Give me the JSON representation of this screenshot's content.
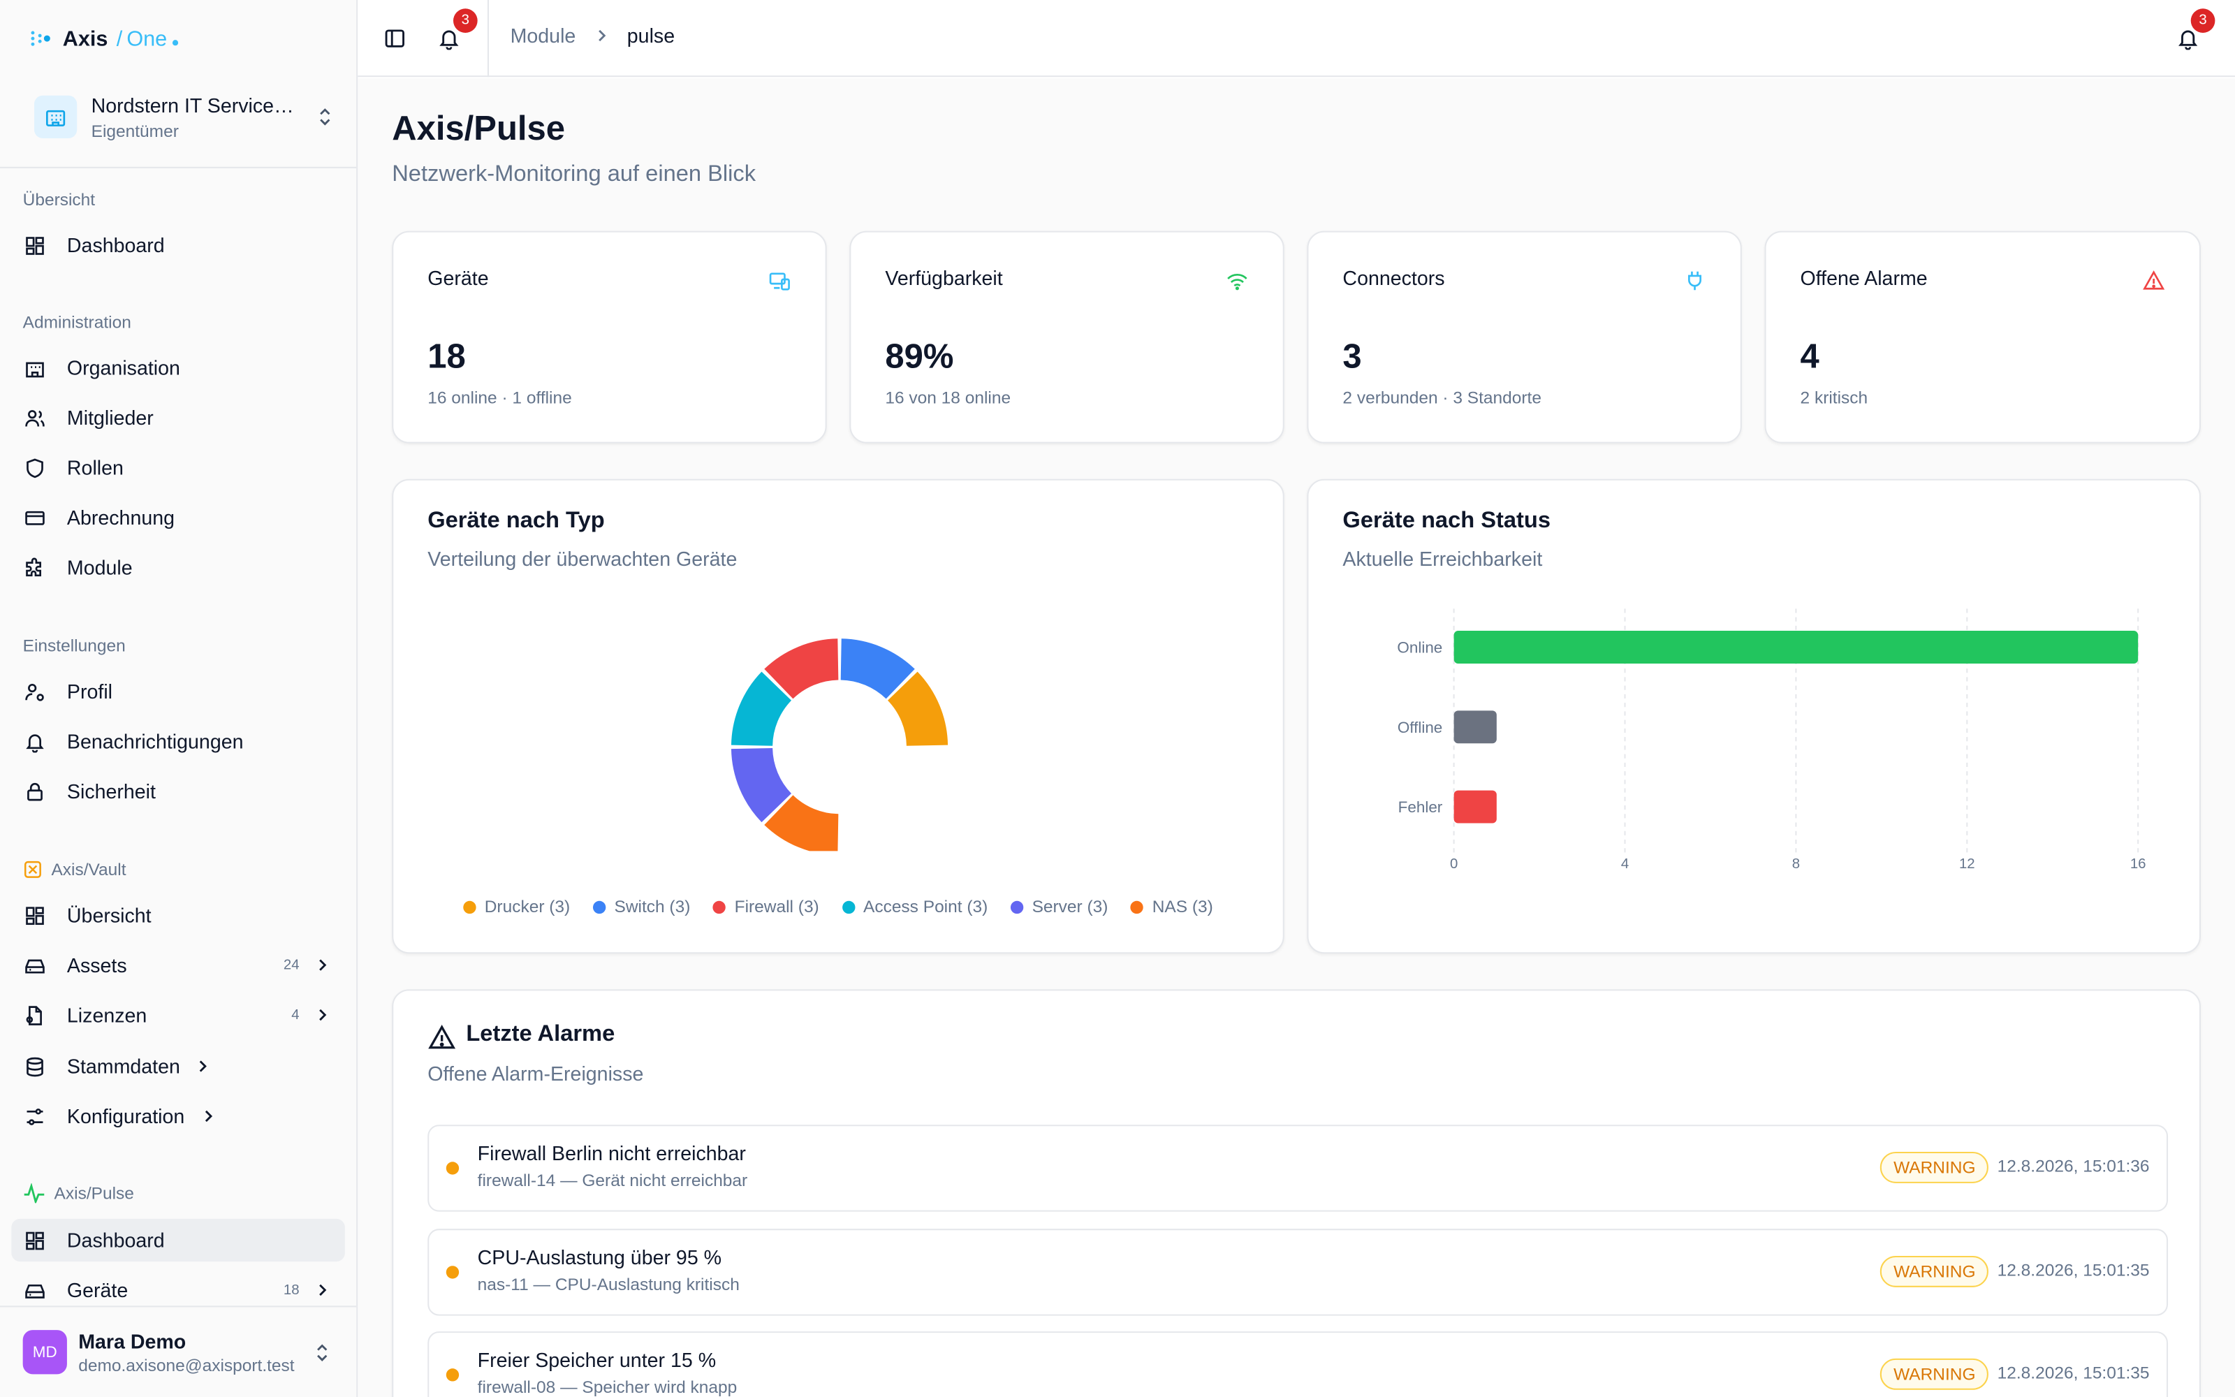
{
  "brand": {
    "name": "Axis",
    "separator": "/",
    "product": "One"
  },
  "org": {
    "name": "Nordstern IT Service…",
    "role": "Eigentümer"
  },
  "sidebar": {
    "sections": {
      "overview": "Übersicht",
      "administration": "Administration",
      "settings": "Einstellungen",
      "vault": "Axis/Vault",
      "pulse": "Axis/Pulse"
    },
    "items": {
      "dashboard": "Dashboard",
      "organisation": "Organisation",
      "members": "Mitglieder",
      "roles": "Rollen",
      "billing": "Abrechnung",
      "modules": "Module",
      "profile": "Profil",
      "notifications": "Benachrichtigungen",
      "security": "Sicherheit",
      "vault_overview": "Übersicht",
      "assets": "Assets",
      "assets_count": "24",
      "licenses": "Lizenzen",
      "licenses_count": "4",
      "masterdata": "Stammdaten",
      "configuration": "Konfiguration",
      "pulse_dashboard": "Dashboard",
      "devices": "Geräte",
      "devices_count": "18"
    }
  },
  "user": {
    "initials": "MD",
    "name": "Mara Demo",
    "email": "demo.axisone@axisport.test"
  },
  "topbar": {
    "notif_count": "3",
    "notif_count_right": "3",
    "breadcrumb": [
      "Module",
      "pulse"
    ]
  },
  "page": {
    "title": "Axis/Pulse",
    "subtitle": "Netzwerk-Monitoring auf einen Blick"
  },
  "stats": [
    {
      "label": "Geräte",
      "value": "18",
      "sub": "16 online · 1 offline",
      "icon": "devices-icon",
      "color": "#38bdf8"
    },
    {
      "label": "Verfügbarkeit",
      "value": "89%",
      "sub": "16 von 18 online",
      "icon": "wifi-icon",
      "color": "#22c55e"
    },
    {
      "label": "Connectors",
      "value": "3",
      "sub": "2 verbunden · 3 Standorte",
      "icon": "plug-icon",
      "color": "#38bdf8"
    },
    {
      "label": "Offene Alarme",
      "value": "4",
      "sub": "2 kritisch",
      "icon": "warning-icon",
      "color": "#ef4444"
    }
  ],
  "type_card": {
    "title": "Geräte nach Typ",
    "subtitle": "Verteilung der überwachten Geräte"
  },
  "status_card": {
    "title": "Geräte nach Status",
    "subtitle": "Aktuelle Erreichbarkeit"
  },
  "chart_data": [
    {
      "type": "pie",
      "categories": [
        "Drucker",
        "Switch",
        "Firewall",
        "Access Point",
        "Server",
        "NAS"
      ],
      "values": [
        3,
        3,
        3,
        3,
        3,
        3
      ],
      "legend_labels": [
        "Drucker (3)",
        "Switch (3)",
        "Firewall (3)",
        "Access Point (3)",
        "Server (3)",
        "NAS (3)"
      ],
      "colors": [
        "#f59e0b",
        "#3b82f6",
        "#ef4444",
        "#06b6d4",
        "#6366f1",
        "#f97316"
      ],
      "title": "Geräte nach Typ",
      "legend": "bottom"
    },
    {
      "type": "bar",
      "orientation": "horizontal",
      "categories": [
        "Online",
        "Offline",
        "Fehler"
      ],
      "values": [
        16,
        1,
        1
      ],
      "colors": [
        "#22c55e",
        "#6b7280",
        "#ef4444"
      ],
      "xticks": [
        "0",
        "4",
        "8",
        "12",
        "16"
      ],
      "xlim": [
        0,
        16
      ],
      "title": "Geräte nach Status",
      "grid": true
    }
  ],
  "alarms": {
    "title": "Letzte Alarme",
    "subtitle": "Offene Alarm-Ereignisse",
    "items": [
      {
        "title": "Firewall Berlin nicht erreichbar",
        "detail": "firewall-14 — Gerät nicht erreichbar",
        "severity": "WARNING",
        "time": "12.8.2026, 15:01:36"
      },
      {
        "title": "CPU-Auslastung über 95 %",
        "detail": "nas-11 — CPU-Auslastung kritisch",
        "severity": "WARNING",
        "time": "12.8.2026, 15:01:35"
      },
      {
        "title": "Freier Speicher unter 15 %",
        "detail": "firewall-08 — Speicher wird knapp",
        "severity": "WARNING",
        "time": "12.8.2026, 15:01:35"
      }
    ]
  }
}
